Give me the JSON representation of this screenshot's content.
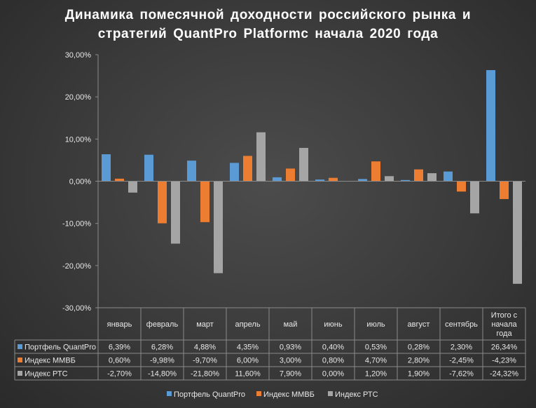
{
  "chart_data": {
    "type": "bar",
    "title_lines": [
      "Динамика помесячной доходности российского рынка и",
      "стратегий QuantPro Platformc начала 2020 года"
    ],
    "categories": [
      "январь",
      "февраль",
      "март",
      "апрель",
      "май",
      "июнь",
      "июль",
      "август",
      "сентябрь",
      "Итого с начала года"
    ],
    "category_label_lines": [
      [
        "январь"
      ],
      [
        "февраль"
      ],
      [
        "март"
      ],
      [
        "апрель"
      ],
      [
        "май"
      ],
      [
        "июнь"
      ],
      [
        "июль"
      ],
      [
        "август"
      ],
      [
        "сентябрь"
      ],
      [
        "Итого с",
        "начала",
        "года"
      ]
    ],
    "series": [
      {
        "name": "Портфель QuantPro",
        "color": "#5b9bd5",
        "values": [
          6.39,
          6.28,
          4.88,
          4.35,
          0.93,
          0.4,
          0.53,
          0.28,
          2.3,
          26.34
        ],
        "labels": [
          "6,39%",
          "6,28%",
          "4,88%",
          "4,35%",
          "0,93%",
          "0,40%",
          "0,53%",
          "0,28%",
          "2,30%",
          "26,34%"
        ]
      },
      {
        "name": "Индекс ММВБ",
        "color": "#ed7d31",
        "values": [
          0.6,
          -9.98,
          -9.7,
          6.0,
          3.0,
          0.8,
          4.7,
          2.8,
          -2.45,
          -4.23
        ],
        "labels": [
          "0,60%",
          "-9,98%",
          "-9,70%",
          "6,00%",
          "3,00%",
          "0,80%",
          "4,70%",
          "2,80%",
          "-2,45%",
          "-4,23%"
        ]
      },
      {
        "name": "Индекс РТС",
        "color": "#a5a5a5",
        "values": [
          -2.7,
          -14.8,
          -21.8,
          11.6,
          7.9,
          0.0,
          1.2,
          1.9,
          -7.62,
          -24.32
        ],
        "labels": [
          "-2,70%",
          "-14,80%",
          "-21,80%",
          "11,60%",
          "7,90%",
          "0,00%",
          "1,20%",
          "1,90%",
          "-7,62%",
          "-24,32%"
        ]
      }
    ],
    "ylim": [
      -30,
      30
    ],
    "y_ticks": [
      30,
      20,
      10,
      0,
      -10,
      -20,
      -30
    ],
    "y_tick_labels": [
      "30,00%",
      "20,00%",
      "10,00%",
      "0,00%",
      "-10,00%",
      "-20,00%",
      "-30,00%"
    ],
    "grid": false,
    "data_table": true,
    "legend_position": "bottom"
  }
}
